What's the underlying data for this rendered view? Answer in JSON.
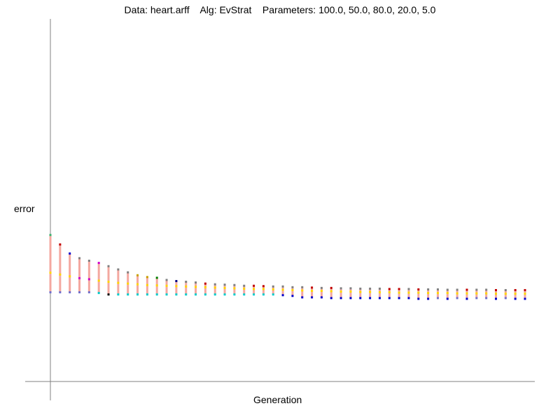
{
  "chart_data": {
    "type": "line",
    "title": "Data: heart.arff    Alg: EvStrat    Parameters: 100.0, 50.0, 80.0, 20.0, 5.0",
    "xlabel": "Generation",
    "ylabel": "error",
    "ylim": [
      0,
      1
    ],
    "x": [
      1,
      2,
      3,
      4,
      5,
      6,
      7,
      8,
      9,
      10,
      11,
      12,
      13,
      14,
      15,
      16,
      17,
      18,
      19,
      20,
      21,
      22,
      23,
      24,
      25,
      26,
      27,
      28,
      29,
      30,
      31,
      32,
      33,
      34,
      35,
      36,
      37,
      38,
      39,
      40,
      41,
      42,
      43,
      44,
      45,
      46,
      47,
      48,
      49,
      50
    ],
    "series_top": [
      0.404,
      0.378,
      0.353,
      0.34,
      0.333,
      0.327,
      0.318,
      0.309,
      0.301,
      0.293,
      0.288,
      0.286,
      0.28,
      0.277,
      0.275,
      0.273,
      0.27,
      0.268,
      0.267,
      0.266,
      0.264,
      0.264,
      0.263,
      0.262,
      0.262,
      0.26,
      0.26,
      0.259,
      0.258,
      0.258,
      0.257,
      0.257,
      0.256,
      0.256,
      0.256,
      0.255,
      0.255,
      0.255,
      0.254,
      0.254,
      0.254,
      0.253,
      0.253,
      0.253,
      0.253,
      0.253,
      0.252,
      0.252,
      0.252,
      0.252
    ],
    "series_bottom": [
      0.246,
      0.246,
      0.246,
      0.246,
      0.246,
      0.244,
      0.24,
      0.24,
      0.24,
      0.24,
      0.24,
      0.24,
      0.24,
      0.24,
      0.24,
      0.24,
      0.24,
      0.24,
      0.24,
      0.24,
      0.24,
      0.24,
      0.24,
      0.24,
      0.238,
      0.236,
      0.232,
      0.232,
      0.232,
      0.23,
      0.23,
      0.23,
      0.23,
      0.23,
      0.23,
      0.23,
      0.23,
      0.23,
      0.228,
      0.228,
      0.23,
      0.228,
      0.23,
      0.228,
      0.23,
      0.23,
      0.228,
      0.23,
      0.228,
      0.228
    ],
    "series_mid": [
      0.3,
      0.295,
      0.29,
      0.285,
      0.282,
      0.278,
      0.275,
      0.272,
      0.27,
      0.268,
      0.266,
      0.265,
      0.264,
      0.263,
      0.262,
      0.261,
      0.26,
      0.259,
      0.258,
      0.257,
      0.256,
      0.255,
      0.255,
      0.254,
      0.253,
      0.252,
      0.251,
      0.25,
      0.25,
      0.249,
      0.248,
      0.248,
      0.247,
      0.247,
      0.246,
      0.246,
      0.245,
      0.245,
      0.245,
      0.244,
      0.244,
      0.244,
      0.243,
      0.243,
      0.243,
      0.243,
      0.242,
      0.242,
      0.242,
      0.242
    ],
    "colors": {
      "range": "#f4a8a0",
      "markers_top": [
        "#3cb371",
        "#c00000",
        "#0000cc",
        "#808080",
        "#808080",
        "#cc00cc",
        "#808080",
        "#808080",
        "#808080",
        "#c8a000",
        "#c8a000",
        "#008000",
        "#808080",
        "#000080",
        "#808080",
        "#808080",
        "#c00000",
        "#808080",
        "#808080",
        "#808080",
        "#808080",
        "#c00000",
        "#c00000",
        "#808080",
        "#808080",
        "#808080",
        "#808080",
        "#c00000",
        "#808080",
        "#c00000",
        "#808080",
        "#808080",
        "#808080",
        "#808080",
        "#808080",
        "#c00000",
        "#c00000",
        "#808080",
        "#c00000",
        "#808080",
        "#808080",
        "#808080",
        "#808080",
        "#c00000",
        "#808080",
        "#808080",
        "#c00000",
        "#808080",
        "#c00000",
        "#c00000"
      ],
      "markers_bottom": [
        "#7070cc",
        "#7070cc",
        "#7070cc",
        "#7070cc",
        "#7070cc",
        "#00cccc",
        "#000000",
        "#00cccc",
        "#00cccc",
        "#00cccc",
        "#00cccc",
        "#00cccc",
        "#00cccc",
        "#00cccc",
        "#00cccc",
        "#00cccc",
        "#00cccc",
        "#00cccc",
        "#00cccc",
        "#00cccc",
        "#00cccc",
        "#00cccc",
        "#00cccc",
        "#00cccc",
        "#0000cc",
        "#0000cc",
        "#0000cc",
        "#0000cc",
        "#0000cc",
        "#0000cc",
        "#0000cc",
        "#0000cc",
        "#0000cc",
        "#0000cc",
        "#0000cc",
        "#0000cc",
        "#0000cc",
        "#0000cc",
        "#0000cc",
        "#0000cc",
        "#7070cc",
        "#0000cc",
        "#7070cc",
        "#0000cc",
        "#7070cc",
        "#7070cc",
        "#0000cc",
        "#7070cc",
        "#0000cc",
        "#0000cc"
      ],
      "markers_mid": [
        "#ffd700",
        "#ffd700",
        "#ffd700",
        "#cc00cc",
        "#cc00cc",
        "#ffd700",
        "#ffd700",
        "#ffd700",
        "#ffd700",
        "#ffd700",
        "#ffd700",
        "#ffd700",
        "#ffd700",
        "#ffd700",
        "#ffd700",
        "#ffd700",
        "#ffd700",
        "#ffd700",
        "#ffd700",
        "#ffd700",
        "#ffd700",
        "#ffd700",
        "#ffd700",
        "#ffd700",
        "#ffd700",
        "#ffd700",
        "#ffd700",
        "#ffd700",
        "#ffd700",
        "#ffd700",
        "#ffd700",
        "#ffd700",
        "#ffd700",
        "#ffd700",
        "#ffd700",
        "#ffd700",
        "#ffd700",
        "#ffd700",
        "#ffd700",
        "#ffd700",
        "#ffd700",
        "#ffd700",
        "#ffd700",
        "#ffd700",
        "#ffd700",
        "#ffd700",
        "#ffd700",
        "#ffd700",
        "#ffd700",
        "#ffd700"
      ]
    }
  }
}
